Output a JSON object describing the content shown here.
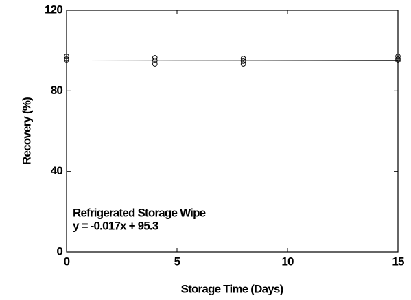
{
  "chart_data": {
    "type": "scatter",
    "x_label": "Storage Time (Days)",
    "y_label": "Recovery (%)",
    "x": [
      0,
      0,
      0,
      4,
      4,
      4,
      8,
      8,
      8,
      15,
      15,
      15
    ],
    "values": [
      97.2,
      95.8,
      95.1,
      96.5,
      95.1,
      93.4,
      96.1,
      94.8,
      93.4,
      97.2,
      95.8,
      95.1
    ],
    "color": "#000000",
    "trendline": {
      "slope": -0.017,
      "intercept": 95.3
    },
    "annotations": [
      "Refrigerated Storage Wipe",
      "y = -0.017x + 95.3"
    ],
    "xlim": [
      0,
      15
    ],
    "xticks": [
      0,
      5,
      10,
      15
    ],
    "ylim": [
      0,
      120
    ],
    "yticks": [
      0,
      40,
      80,
      120
    ],
    "grid": false
  }
}
